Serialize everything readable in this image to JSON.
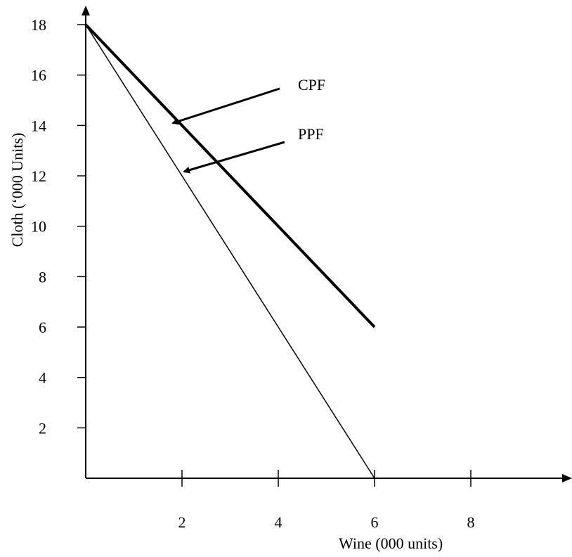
{
  "chart_data": {
    "type": "line",
    "xlabel": "Wine (000 units)",
    "ylabel": "Cloth (‘000 Units)",
    "xlim": [
      0,
      10
    ],
    "ylim": [
      0,
      19
    ],
    "x_ticks": [
      2,
      4,
      6,
      8
    ],
    "x_tick_labels": [
      "2",
      "4",
      "6",
      "8"
    ],
    "y_ticks": [
      2,
      4,
      6,
      8,
      10,
      12,
      14,
      16,
      18
    ],
    "y_tick_labels": [
      "2",
      "4",
      "6",
      "8",
      "10",
      "12",
      "14",
      "16",
      "18"
    ],
    "grid": false,
    "series": [
      {
        "name": "CPF",
        "points": [
          [
            0,
            18
          ],
          [
            6,
            6
          ]
        ],
        "stroke": "#000000",
        "style": "bold"
      },
      {
        "name": "PPF",
        "points": [
          [
            0,
            18
          ],
          [
            6,
            0
          ]
        ],
        "stroke": "#000000",
        "style": "thin"
      }
    ],
    "annotations": [
      {
        "text": "CPF",
        "points_to_series": "CPF"
      },
      {
        "text": "PPF",
        "points_to_series": "PPF"
      }
    ]
  }
}
